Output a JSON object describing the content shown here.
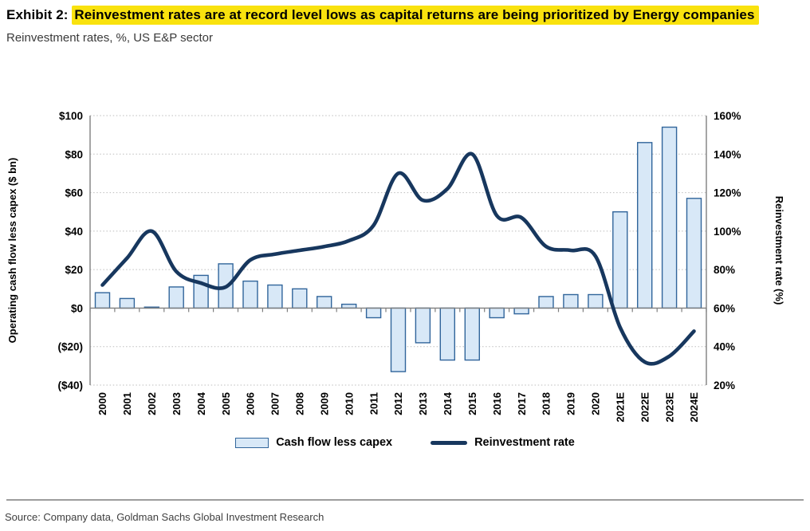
{
  "header": {
    "exhibit_label": "Exhibit 2:",
    "title_highlighted": "Reinvestment rates are at record level lows as capital returns are being prioritized by Energy companies",
    "subtitle": "Reinvestment rates, %, US E&P sector"
  },
  "chart_data": {
    "type": "bar+line dual-axis",
    "categories": [
      "2000",
      "2001",
      "2002",
      "2003",
      "2004",
      "2005",
      "2006",
      "2007",
      "2008",
      "2009",
      "2010",
      "2011",
      "2012",
      "2013",
      "2014",
      "2015",
      "2016",
      "2017",
      "2018",
      "2019",
      "2020",
      "2021E",
      "2022E",
      "2023E",
      "2024E"
    ],
    "series": [
      {
        "name": "Cash flow less capex",
        "type": "bar",
        "axis": "left",
        "unit": "$ bn",
        "values": [
          8,
          5,
          0.5,
          11,
          17,
          23,
          14,
          12,
          10,
          6,
          2,
          -5,
          -33,
          -18,
          -27,
          -27,
          -5,
          -3,
          6,
          7,
          7,
          50,
          86,
          94,
          57
        ]
      },
      {
        "name": "Reinvestment rate",
        "type": "line",
        "axis": "right",
        "unit": "%",
        "values": [
          72,
          86,
          100,
          79,
          73,
          71,
          85,
          88,
          90,
          92,
          95,
          103,
          130,
          116,
          122,
          140,
          108,
          107,
          92,
          90,
          87,
          50,
          32,
          35,
          48
        ]
      }
    ],
    "left_axis": {
      "title": "Operating cash flow less capex ($ bn)",
      "tick_labels": [
        "$100",
        "$80",
        "$60",
        "$40",
        "$20",
        "$0",
        "($20)",
        "($40)"
      ],
      "max": 100,
      "min": -40,
      "tick_step": 20
    },
    "right_axis": {
      "title": "Reinvestment rate (%)",
      "tick_labels": [
        "160%",
        "140%",
        "120%",
        "100%",
        "80%",
        "60%",
        "40%",
        "20%"
      ],
      "max": 160,
      "min": 20,
      "tick_step": 20
    },
    "grid": "horizontal-dotted",
    "legend_position": "bottom-center",
    "x_labels_rotated": true
  },
  "legend": {
    "bar_label": "Cash flow less capex",
    "line_label": "Reinvestment rate"
  },
  "source": "Source: Company data, Goldman Sachs Global Investment Research",
  "colors": {
    "highlight": "#F9E20E",
    "bar_fill": "#D8E8F7",
    "bar_border": "#31659B",
    "line": "#17375E",
    "grid": "#BDBDBD",
    "axis": "#7F7F7F"
  }
}
